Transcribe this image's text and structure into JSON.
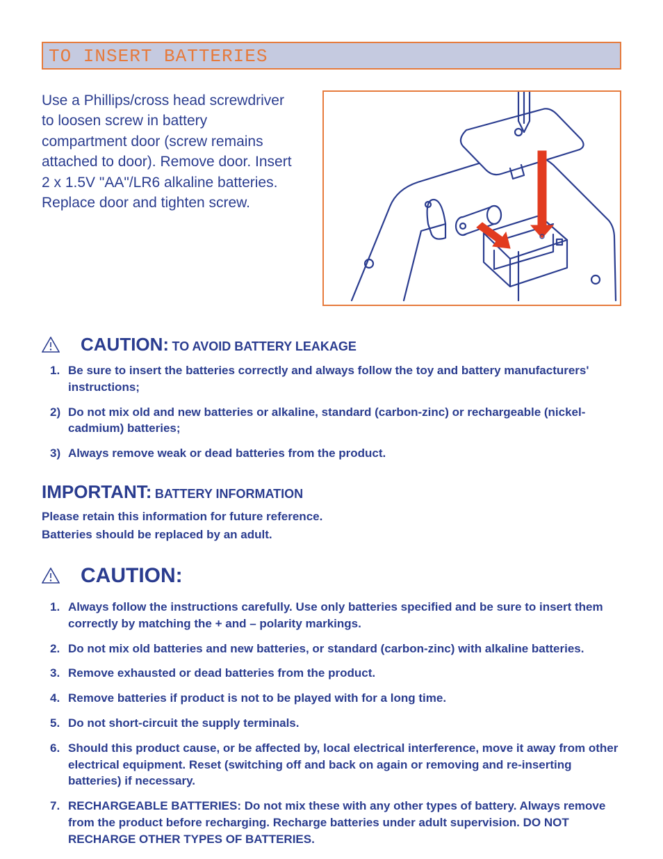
{
  "colors": {
    "orange": "#e67a3c",
    "headerBg": "#c5cae0",
    "blue": "#2a3c8f",
    "textBlue": "#2a3c8f"
  },
  "sectionHeader": {
    "text": "TO INSERT BATTERIES",
    "fontsize": 26,
    "color": "#e67a3c",
    "bg": "#c5cae0",
    "border": "#e67a3c"
  },
  "instructionText": {
    "text": "Use a Phillips/cross head screwdriver to loosen screw in battery compartment door (screw remains attached to door). Remove door.  Insert 2 x 1.5V \"AA\"/LR6 alkaline batteries. Replace door and tighten screw.",
    "fontsize": 21,
    "color": "#2a3c8f"
  },
  "illustration": {
    "border": "#e67a3c",
    "lineColor": "#2a3c8f",
    "arrowColor": "#e23b1f"
  },
  "caution1": {
    "icon": true,
    "label": "CAUTION:",
    "labelSize": 26,
    "sub": "TO AVOID BATTERY LEAKAGE",
    "subSize": 18,
    "color": "#2a3c8f",
    "items": [
      {
        "marker": "1.",
        "text": "Be sure to insert the batteries correctly and always follow the toy and battery manufacturers' instructions;"
      },
      {
        "marker": "2)",
        "text": "Do not mix old and new batteries or alkaline, standard (carbon-zinc) or rechargeable (nickel-cadmium) batteries;"
      },
      {
        "marker": "3)",
        "text": "Always remove weak or dead batteries from the product."
      }
    ],
    "itemFontsize": 17
  },
  "important": {
    "label": "IMPORTANT:",
    "labelSize": 26,
    "sub": "BATTERY INFORMATION",
    "subSize": 18,
    "color": "#2a3c8f",
    "lines": [
      "Please retain this information for future reference.",
      "Batteries should be replaced by an adult."
    ],
    "lineFontsize": 17
  },
  "caution2": {
    "icon": true,
    "label": "CAUTION:",
    "labelSize": 30,
    "color": "#2a3c8f",
    "items": [
      {
        "marker": "1.",
        "text": "Always follow the instructions carefully. Use only batteries specified and be sure to insert them correctly by matching the + and – polarity markings."
      },
      {
        "marker": "2.",
        "text": "Do not mix old batteries and new batteries, or standard (carbon-zinc) with alkaline batteries."
      },
      {
        "marker": "3.",
        "text": "Remove exhausted or dead batteries from the product."
      },
      {
        "marker": "4.",
        "text": "Remove batteries if product is not to be played with for a long time."
      },
      {
        "marker": "5.",
        "text": "Do not short-circuit the supply terminals."
      },
      {
        "marker": "6.",
        "text": "Should this product cause, or be affected by, local electrical interference, move it away from other electrical equipment. Reset (switching off and back on again or removing and re-inserting batteries) if necessary."
      },
      {
        "marker": "7.",
        "text": "RECHARGEABLE BATTERIES: Do not mix these with any other types of battery. Always remove from the product before recharging. Recharge batteries under adult supervision. DO NOT RECHARGE OTHER TYPES OF BATTERIES."
      }
    ],
    "itemFontsize": 17
  }
}
